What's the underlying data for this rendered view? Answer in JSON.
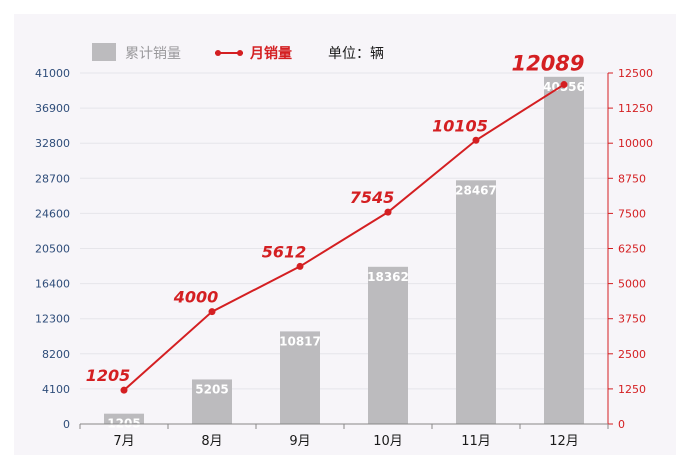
{
  "colors": {
    "background": "#f7f5f9",
    "bar": "#bcbbbe",
    "bar_label": "#ffffff",
    "line": "#d41f22",
    "left_axis_text": "#2f4d7a",
    "right_axis_text": "#d41f22",
    "grid": "#e6e5ea",
    "axis_line": "#888888",
    "legend_text": "#1a1a1a",
    "legend_bar_text": "#9a999c"
  },
  "legend": {
    "bar_label": "累计销量",
    "line_label": "月销量",
    "unit": "单位：辆"
  },
  "chart_data": {
    "type": "bar",
    "categories": [
      "7月",
      "8月",
      "9月",
      "10月",
      "11月",
      "12月"
    ],
    "series": [
      {
        "name": "累计销量",
        "type": "bar",
        "axis": "left",
        "values": [
          1205,
          5205,
          10817,
          18362,
          28467,
          40556
        ],
        "labels": [
          "1205",
          "5205",
          "10817",
          "18362",
          "28467",
          "40556"
        ]
      },
      {
        "name": "月销量",
        "type": "line",
        "axis": "right",
        "values": [
          1205,
          4000,
          5612,
          7545,
          10105,
          12089
        ],
        "labels": [
          "1205",
          "4000",
          "5612",
          "7545",
          "10105",
          "12089"
        ]
      }
    ],
    "left_axis": {
      "ylim": [
        0,
        41000
      ],
      "ticks": [
        0,
        4100,
        8200,
        12300,
        16400,
        20500,
        24600,
        28700,
        32800,
        36900,
        41000
      ],
      "tick_labels": [
        "0",
        "4100",
        "8200",
        "12300",
        "16400",
        "20500",
        "24600",
        "28700",
        "32800",
        "36900",
        "41000"
      ]
    },
    "right_axis": {
      "ylim": [
        0,
        12500
      ],
      "ticks": [
        0,
        1250,
        2500,
        3750,
        5000,
        6250,
        7500,
        8750,
        10000,
        11250,
        12500
      ],
      "tick_labels": [
        "0",
        "1250",
        "2500",
        "3750",
        "5000",
        "6250",
        "7500",
        "8750",
        "10000",
        "11250",
        "12500"
      ]
    },
    "grid": true,
    "legend_position": "top-left"
  }
}
